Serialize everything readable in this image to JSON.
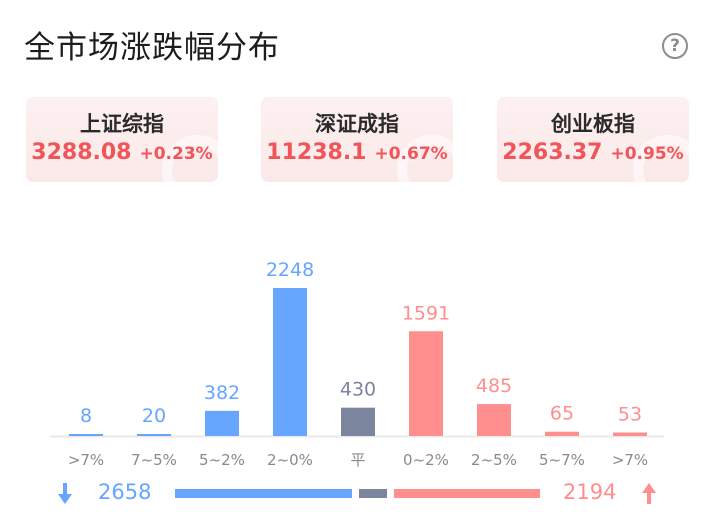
{
  "title": "全市场涨跌幅分布",
  "help_icon": "question-circle-icon",
  "indices": [
    {
      "name": "上证综指",
      "price": "3288.08",
      "change": "+0.23%"
    },
    {
      "name": "深证成指",
      "price": "11238.1",
      "change": "+0.67%"
    },
    {
      "name": "创业板指",
      "price": "2263.37",
      "change": "+0.95%"
    }
  ],
  "colors": {
    "down": "#66a6ff",
    "flat": "#7b859e",
    "up": "#ff8f8f",
    "accent": "#f0555a"
  },
  "chart_data": {
    "type": "bar",
    "categories": [
      ">7%",
      "7~5%",
      "5~2%",
      "2~0%",
      "平",
      "0~2%",
      "2~5%",
      "5~7%",
      ">7%"
    ],
    "values": [
      8,
      20,
      382,
      2248,
      430,
      1591,
      485,
      65,
      53
    ],
    "groups": [
      "down",
      "down",
      "down",
      "down",
      "flat",
      "up",
      "up",
      "up",
      "up"
    ],
    "ylim": [
      0,
      2248
    ],
    "grid": false
  },
  "summary": {
    "down_count": "2658",
    "up_count": "2194",
    "down_icon": "arrow-down-icon",
    "up_icon": "arrow-up-icon"
  }
}
